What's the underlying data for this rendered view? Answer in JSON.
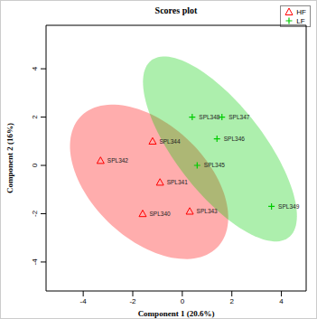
{
  "chart_data": {
    "type": "scatter",
    "title": "Scores plot",
    "x_label": "Component 1 (20.6%)",
    "y_label": "Component 2 (16%)",
    "xlim": [
      -5.5,
      5
    ],
    "ylim": [
      -5.2,
      5.8
    ],
    "xticks": [
      -4,
      -2,
      0,
      2,
      4
    ],
    "yticks": [
      -4,
      -2,
      0,
      2,
      4
    ],
    "legend": "upper right",
    "series": [
      {
        "name": "HF",
        "color": "#ff0000",
        "marker": "triangle",
        "labels": [
          "SPL342",
          "SPL344",
          "SPL341",
          "SPL340",
          "SPL343"
        ],
        "x": [
          -3.3,
          -1.2,
          -0.9,
          -1.6,
          0.3
        ],
        "y": [
          0.2,
          1.0,
          -0.7,
          -2.0,
          -1.9
        ]
      },
      {
        "name": "LF",
        "color": "#00cc00",
        "marker": "plus",
        "labels": [
          "SPL348",
          "SPL347",
          "SPL346",
          "SPL345",
          "SPL349"
        ],
        "x": [
          0.4,
          1.6,
          1.4,
          0.6,
          3.6
        ],
        "y": [
          2.0,
          2.0,
          1.1,
          0.0,
          -1.7
        ]
      }
    ]
  }
}
